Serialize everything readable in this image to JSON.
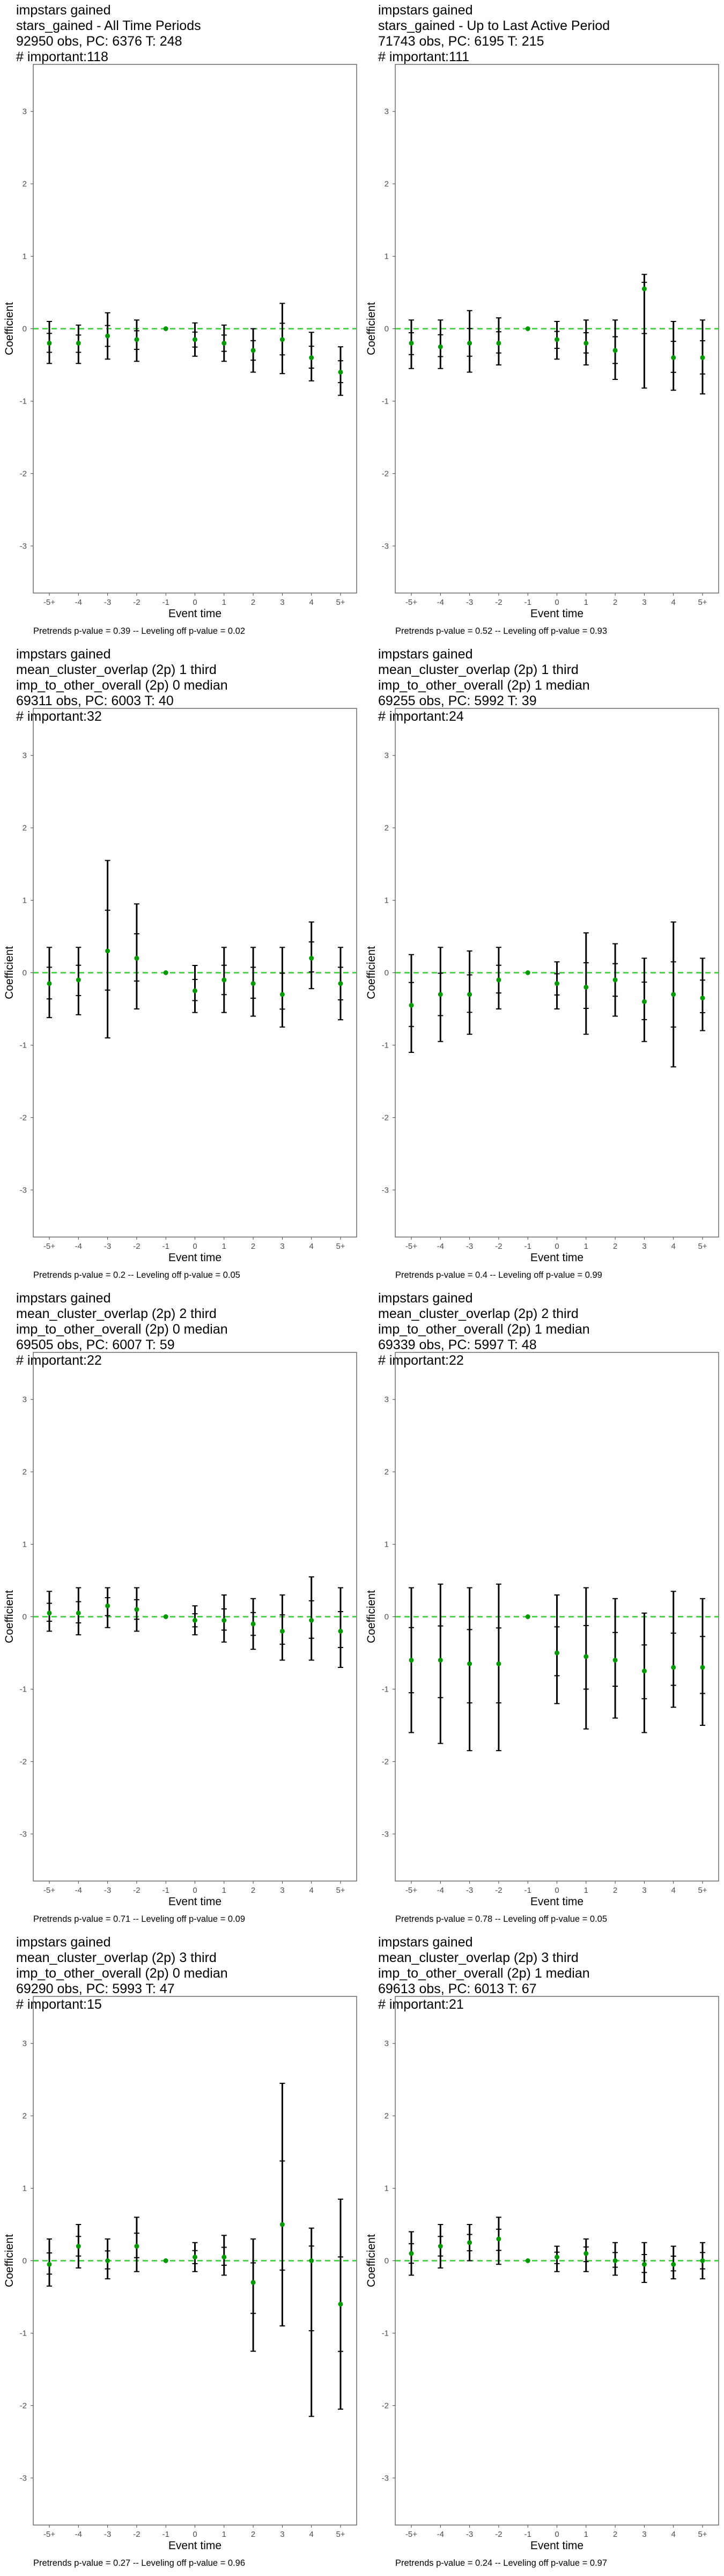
{
  "chart_data": [
    {
      "type": "scatter",
      "title_lines": [
        "impstars gained",
        "stars_gained - All Time Periods",
        "92950 obs, PC: 6376 T: 248",
        "# important:118"
      ],
      "xlabel": "Event time",
      "ylabel": "Coefficient",
      "categories": [
        "-5+",
        "-4",
        "-3",
        "-2",
        "-1",
        "0",
        "1",
        "2",
        "3",
        "4",
        "5+"
      ],
      "yticks": [
        -3,
        -2,
        -1,
        0,
        1,
        2,
        3
      ],
      "ylim": [
        -3.65,
        3.65
      ],
      "estimates": [
        -0.2,
        -0.2,
        -0.1,
        -0.15,
        0,
        -0.15,
        -0.2,
        -0.3,
        -0.15,
        -0.4,
        -0.6
      ],
      "ci_low": [
        -0.48,
        -0.48,
        -0.42,
        -0.45,
        0,
        -0.38,
        -0.45,
        -0.6,
        -0.62,
        -0.72,
        -0.92
      ],
      "ci_high": [
        0.1,
        0.05,
        0.22,
        0.12,
        0,
        0.08,
        0.05,
        0.0,
        0.35,
        -0.05,
        -0.25
      ],
      "footnote": "Pretrends p-value = 0.39 -- Leveling off p-value = 0.02",
      "reference_line_color": "#33cc33",
      "point_color": "#009900"
    },
    {
      "type": "scatter",
      "title_lines": [
        "impstars gained",
        "stars_gained - Up to Last Active Period",
        "71743 obs, PC: 6195 T: 215",
        "# important:111"
      ],
      "xlabel": "Event time",
      "ylabel": "Coefficient",
      "categories": [
        "-5+",
        "-4",
        "-3",
        "-2",
        "-1",
        "0",
        "1",
        "2",
        "3",
        "4",
        "5+"
      ],
      "yticks": [
        -3,
        -2,
        -1,
        0,
        1,
        2,
        3
      ],
      "ylim": [
        -3.65,
        3.65
      ],
      "estimates": [
        -0.2,
        -0.25,
        -0.2,
        -0.2,
        0,
        -0.15,
        -0.2,
        -0.3,
        0.55,
        -0.4,
        -0.4
      ],
      "ci_low": [
        -0.55,
        -0.55,
        -0.6,
        -0.5,
        0,
        -0.42,
        -0.5,
        -0.7,
        -0.82,
        -0.85,
        -0.9
      ],
      "ci_high": [
        0.12,
        0.12,
        0.25,
        0.15,
        0,
        0.1,
        0.12,
        0.12,
        0.75,
        0.1,
        0.12
      ],
      "footnote": "Pretrends p-value = 0.52 -- Leveling off p-value = 0.93",
      "reference_line_color": "#33cc33",
      "point_color": "#009900"
    },
    {
      "type": "scatter",
      "title_lines": [
        "impstars gained",
        "mean_cluster_overlap (2p) 1 third",
        "imp_to_other_overall (2p) 0 median",
        "69311 obs, PC: 6003 T: 40",
        "# important:32"
      ],
      "xlabel": "Event time",
      "ylabel": "Coefficient",
      "categories": [
        "-5+",
        "-4",
        "-3",
        "-2",
        "-1",
        "0",
        "1",
        "2",
        "3",
        "4",
        "5+"
      ],
      "yticks": [
        -3,
        -2,
        -1,
        0,
        1,
        2,
        3
      ],
      "ylim": [
        -3.65,
        3.65
      ],
      "estimates": [
        -0.15,
        -0.1,
        0.3,
        0.2,
        0,
        -0.25,
        -0.1,
        -0.15,
        -0.3,
        0.2,
        -0.15
      ],
      "ci_low": [
        -0.62,
        -0.58,
        -0.9,
        -0.5,
        0,
        -0.55,
        -0.55,
        -0.6,
        -0.75,
        -0.22,
        -0.65
      ],
      "ci_high": [
        0.35,
        0.35,
        1.55,
        0.95,
        0,
        0.1,
        0.35,
        0.35,
        0.35,
        0.7,
        0.35
      ],
      "footnote": "Pretrends p-value = 0.2 -- Leveling off p-value = 0.05",
      "reference_line_color": "#33cc33",
      "point_color": "#009900"
    },
    {
      "type": "scatter",
      "title_lines": [
        "impstars gained",
        "mean_cluster_overlap (2p) 1 third",
        "imp_to_other_overall (2p) 1 median",
        "69255 obs, PC: 5992 T: 39",
        "# important:24"
      ],
      "xlabel": "Event time",
      "ylabel": "Coefficient",
      "categories": [
        "-5+",
        "-4",
        "-3",
        "-2",
        "-1",
        "0",
        "1",
        "2",
        "3",
        "4",
        "5+"
      ],
      "yticks": [
        -3,
        -2,
        -1,
        0,
        1,
        2,
        3
      ],
      "ylim": [
        -3.65,
        3.65
      ],
      "estimates": [
        -0.45,
        -0.3,
        -0.3,
        -0.1,
        0,
        -0.15,
        -0.2,
        -0.1,
        -0.4,
        -0.3,
        -0.35
      ],
      "ci_low": [
        -1.1,
        -0.95,
        -0.85,
        -0.5,
        0,
        -0.5,
        -0.85,
        -0.6,
        -0.95,
        -1.3,
        -0.8
      ],
      "ci_high": [
        0.25,
        0.35,
        0.3,
        0.35,
        0,
        0.15,
        0.55,
        0.4,
        0.2,
        0.7,
        0.2
      ],
      "footnote": "Pretrends p-value = 0.4 -- Leveling off p-value = 0.99",
      "reference_line_color": "#33cc33",
      "point_color": "#009900"
    },
    {
      "type": "scatter",
      "title_lines": [
        "impstars gained",
        "mean_cluster_overlap (2p) 2 third",
        "imp_to_other_overall (2p) 0 median",
        "69505 obs, PC: 6007 T: 59",
        "# important:22"
      ],
      "xlabel": "Event time",
      "ylabel": "Coefficient",
      "categories": [
        "-5+",
        "-4",
        "-3",
        "-2",
        "-1",
        "0",
        "1",
        "2",
        "3",
        "4",
        "5+"
      ],
      "yticks": [
        -3,
        -2,
        -1,
        0,
        1,
        2,
        3
      ],
      "ylim": [
        -3.65,
        3.65
      ],
      "estimates": [
        0.05,
        0.05,
        0.15,
        0.1,
        0,
        -0.05,
        -0.05,
        -0.1,
        -0.2,
        -0.05,
        -0.2
      ],
      "ci_low": [
        -0.2,
        -0.25,
        -0.15,
        -0.2,
        0,
        -0.25,
        -0.35,
        -0.45,
        -0.6,
        -0.6,
        -0.7
      ],
      "ci_high": [
        0.35,
        0.4,
        0.4,
        0.4,
        0,
        0.15,
        0.3,
        0.25,
        0.3,
        0.55,
        0.4
      ],
      "footnote": "Pretrends p-value = 0.71 -- Leveling off p-value = 0.09",
      "reference_line_color": "#33cc33",
      "point_color": "#009900"
    },
    {
      "type": "scatter",
      "title_lines": [
        "impstars gained",
        "mean_cluster_overlap (2p) 2 third",
        "imp_to_other_overall (2p) 1 median",
        "69339 obs, PC: 5997 T: 48",
        "# important:22"
      ],
      "xlabel": "Event time",
      "ylabel": "Coefficient",
      "categories": [
        "-5+",
        "-4",
        "-3",
        "-2",
        "-1",
        "0",
        "1",
        "2",
        "3",
        "4",
        "5+"
      ],
      "yticks": [
        -3,
        -2,
        -1,
        0,
        1,
        2,
        3
      ],
      "ylim": [
        -3.65,
        3.65
      ],
      "estimates": [
        -0.6,
        -0.6,
        -0.65,
        -0.65,
        0,
        -0.5,
        -0.55,
        -0.6,
        -0.75,
        -0.7,
        -0.7
      ],
      "ci_low": [
        -1.6,
        -1.75,
        -1.85,
        -1.85,
        0,
        -1.2,
        -1.55,
        -1.4,
        -1.6,
        -1.25,
        -1.5
      ],
      "ci_high": [
        0.4,
        0.45,
        0.4,
        0.45,
        0,
        0.3,
        0.4,
        0.25,
        0.05,
        0.35,
        0.25
      ],
      "footnote": "Pretrends p-value = 0.78 -- Leveling off p-value = 0.05",
      "reference_line_color": "#33cc33",
      "point_color": "#009900"
    },
    {
      "type": "scatter",
      "title_lines": [
        "impstars gained",
        "mean_cluster_overlap (2p) 3 third",
        "imp_to_other_overall (2p) 0 median",
        "69290 obs, PC: 5993 T: 47",
        "# important:15"
      ],
      "xlabel": "Event time",
      "ylabel": "Coefficient",
      "categories": [
        "-5+",
        "-4",
        "-3",
        "-2",
        "-1",
        "0",
        "1",
        "2",
        "3",
        "4",
        "5+"
      ],
      "yticks": [
        -3,
        -2,
        -1,
        0,
        1,
        2,
        3
      ],
      "ylim": [
        -3.65,
        3.65
      ],
      "estimates": [
        -0.05,
        0.2,
        0.0,
        0.2,
        0,
        0.05,
        0.05,
        -0.3,
        0.5,
        0.0,
        -0.6
      ],
      "ci_low": [
        -0.35,
        -0.1,
        -0.25,
        -0.15,
        0,
        -0.15,
        -0.2,
        -1.25,
        -0.9,
        -2.15,
        -2.05
      ],
      "ci_high": [
        0.3,
        0.5,
        0.3,
        0.6,
        0,
        0.25,
        0.35,
        0.3,
        2.45,
        0.45,
        0.85
      ],
      "footnote": "Pretrends p-value = 0.27 -- Leveling off p-value = 0.96",
      "reference_line_color": "#33cc33",
      "point_color": "#009900"
    },
    {
      "type": "scatter",
      "title_lines": [
        "impstars gained",
        "mean_cluster_overlap (2p) 3 third",
        "imp_to_other_overall (2p) 1 median",
        "69613 obs, PC: 6013 T: 67",
        "# important:21"
      ],
      "xlabel": "Event time",
      "ylabel": "Coefficient",
      "categories": [
        "-5+",
        "-4",
        "-3",
        "-2",
        "-1",
        "0",
        "1",
        "2",
        "3",
        "4",
        "5+"
      ],
      "yticks": [
        -3,
        -2,
        -1,
        0,
        1,
        2,
        3
      ],
      "ylim": [
        -3.65,
        3.65
      ],
      "estimates": [
        0.1,
        0.2,
        0.25,
        0.3,
        0,
        0.05,
        0.1,
        0.0,
        -0.05,
        -0.05,
        0.0
      ],
      "ci_low": [
        -0.2,
        -0.1,
        0.0,
        -0.05,
        0,
        -0.15,
        -0.15,
        -0.2,
        -0.3,
        -0.25,
        -0.25
      ],
      "ci_high": [
        0.4,
        0.5,
        0.5,
        0.6,
        0,
        0.2,
        0.3,
        0.25,
        0.25,
        0.2,
        0.25
      ],
      "footnote": "Pretrends p-value = 0.24 -- Leveling off p-value = 0.97",
      "reference_line_color": "#33cc33",
      "point_color": "#009900"
    }
  ]
}
